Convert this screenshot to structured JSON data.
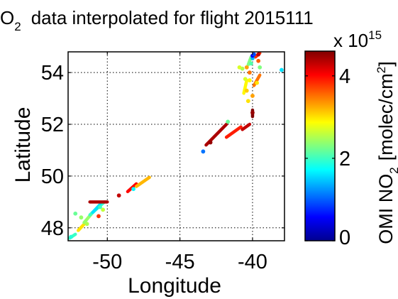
{
  "chart_data": {
    "type": "scatter",
    "title": "O2 data interpolated for flight 2015111",
    "title_parts": [
      "O",
      "2",
      "data interpolated for flight 2015111"
    ],
    "xlabel": "Longitude",
    "ylabel": "Latitude",
    "xlim": [
      -52.7,
      -37.8
    ],
    "ylim": [
      47.5,
      54.8
    ],
    "xticks": [
      -50,
      -45,
      -40
    ],
    "yticks": [
      48,
      50,
      52,
      54
    ],
    "xtick_labels": [
      "-50",
      "-45",
      "-40"
    ],
    "ytick_labels": [
      "48",
      "50",
      "52",
      "54"
    ],
    "grid": true,
    "grid_style": "dotted",
    "colorbar": {
      "label_parts": [
        "OMI NO",
        "2",
        "[molec/cm",
        "2",
        "]"
      ],
      "exponent_parts": [
        "x 10",
        "15"
      ],
      "range": [
        0,
        4.6
      ],
      "ticks": [
        0,
        2,
        4
      ],
      "tick_labels": [
        "0",
        "2",
        "4"
      ],
      "colormap": "jet"
    },
    "segments": [
      {
        "from": [
          -52.6,
          47.6
        ],
        "to": [
          -52.2,
          47.75
        ],
        "value": 2.0
      },
      {
        "from": [
          -52.0,
          47.9
        ],
        "to": [
          -51.5,
          48.2
        ],
        "value": 3.0
      },
      {
        "from": [
          -51.6,
          48.2
        ],
        "to": [
          -51.0,
          48.6
        ],
        "value": 2.4
      },
      {
        "from": [
          -51.2,
          48.5
        ],
        "to": [
          -50.2,
          49.0
        ],
        "value": 2.0
      },
      {
        "from": [
          -51.0,
          48.6
        ],
        "to": [
          -50.5,
          48.9
        ],
        "value": 1.6
      },
      {
        "from": [
          -51.2,
          49.0
        ],
        "to": [
          -50.0,
          49.0
        ],
        "value": 4.4
      },
      {
        "from": [
          -48.6,
          49.4
        ],
        "to": [
          -48.0,
          49.7
        ],
        "value": 4.0
      },
      {
        "from": [
          -48.0,
          49.6
        ],
        "to": [
          -47.1,
          49.95
        ],
        "value": 3.2
      },
      {
        "from": [
          -43.2,
          51.2
        ],
        "to": [
          -41.8,
          52.0
        ],
        "value": 4.4
      },
      {
        "from": [
          -41.8,
          51.5
        ],
        "to": [
          -40.8,
          51.9
        ],
        "value": 3.9
      },
      {
        "from": [
          -40.7,
          51.8
        ],
        "to": [
          -40.2,
          52.0
        ],
        "value": 4.3
      },
      {
        "from": [
          -40.0,
          52.3
        ],
        "to": [
          -40.0,
          52.55
        ],
        "value": 4.6
      },
      {
        "from": [
          -39.8,
          54.6
        ],
        "to": [
          -39.5,
          54.75
        ],
        "value": 3.8
      },
      {
        "from": [
          -39.9,
          53.5
        ],
        "to": [
          -39.5,
          53.9
        ],
        "value": 3.5
      },
      {
        "from": [
          -40.3,
          54.3
        ],
        "to": [
          -40.1,
          54.6
        ],
        "value": 2.3
      },
      {
        "from": [
          -40.6,
          53.2
        ],
        "to": [
          -40.4,
          53.7
        ],
        "value": 2.9
      }
    ],
    "points": [
      {
        "x": -52.5,
        "y": 47.65,
        "value": 1.9
      },
      {
        "x": -52.2,
        "y": 48.55,
        "value": 2.2
      },
      {
        "x": -51.8,
        "y": 48.4,
        "value": 2.4
      },
      {
        "x": -51.4,
        "y": 48.15,
        "value": 2.5
      },
      {
        "x": -50.6,
        "y": 48.45,
        "value": 3.8
      },
      {
        "x": -50.5,
        "y": 48.8,
        "value": 2.0
      },
      {
        "x": -50.3,
        "y": 48.7,
        "value": 2.6
      },
      {
        "x": -49.2,
        "y": 49.25,
        "value": 4.3
      },
      {
        "x": -48.2,
        "y": 49.5,
        "value": 1.7
      },
      {
        "x": -43.4,
        "y": 50.95,
        "value": 1.1
      },
      {
        "x": -42.9,
        "y": 51.3,
        "value": 4.5
      },
      {
        "x": -41.7,
        "y": 52.1,
        "value": 2.2
      },
      {
        "x": -40.0,
        "y": 52.45,
        "value": 4.5
      },
      {
        "x": -40.3,
        "y": 52.9,
        "value": 3.0
      },
      {
        "x": -40.4,
        "y": 53.3,
        "value": 3.1
      },
      {
        "x": -40.0,
        "y": 53.1,
        "value": 3.3
      },
      {
        "x": -40.5,
        "y": 53.75,
        "value": 2.7
      },
      {
        "x": -40.2,
        "y": 53.7,
        "value": 2.9
      },
      {
        "x": -40.2,
        "y": 54.0,
        "value": 3.5
      },
      {
        "x": -40.4,
        "y": 54.2,
        "value": 3.3
      },
      {
        "x": -40.7,
        "y": 54.15,
        "value": 2.5
      },
      {
        "x": -40.9,
        "y": 54.2,
        "value": 2.7
      },
      {
        "x": -40.1,
        "y": 54.35,
        "value": 2.1
      },
      {
        "x": -40.0,
        "y": 54.55,
        "value": 1.4
      },
      {
        "x": -40.0,
        "y": 54.65,
        "value": 0.6
      },
      {
        "x": -39.9,
        "y": 54.7,
        "value": 0.9
      },
      {
        "x": -39.6,
        "y": 54.7,
        "value": 4.3
      },
      {
        "x": -39.6,
        "y": 54.45,
        "value": 3.6
      },
      {
        "x": -39.5,
        "y": 54.2,
        "value": 2.3
      },
      {
        "x": -38.0,
        "y": 54.1,
        "value": 1.6
      },
      {
        "x": -39.7,
        "y": 53.6,
        "value": 3.0
      }
    ]
  }
}
